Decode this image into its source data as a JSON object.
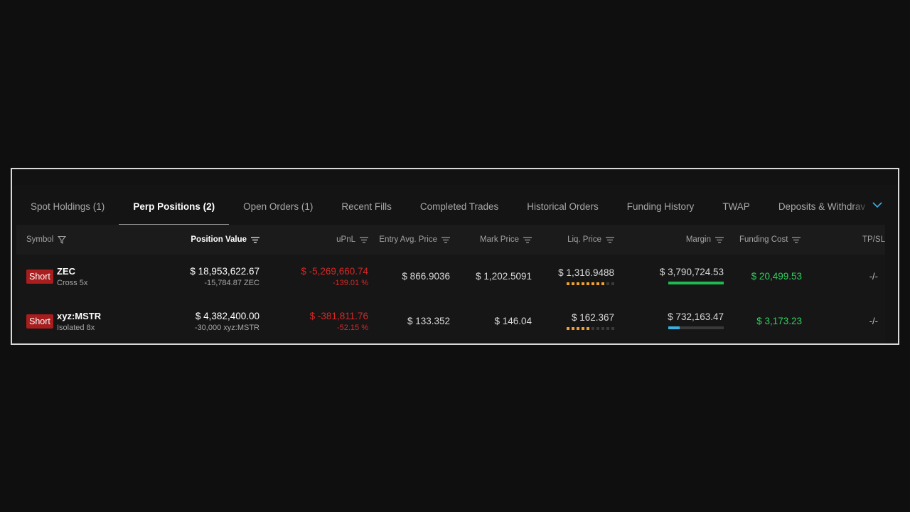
{
  "tabs": [
    {
      "label": "Spot Holdings (1)",
      "active": false
    },
    {
      "label": "Perp Positions (2)",
      "active": true
    },
    {
      "label": "Open Orders (1)",
      "active": false
    },
    {
      "label": "Recent Fills",
      "active": false
    },
    {
      "label": "Completed Trades",
      "active": false
    },
    {
      "label": "Historical Orders",
      "active": false
    },
    {
      "label": "Funding History",
      "active": false
    },
    {
      "label": "TWAP",
      "active": false
    },
    {
      "label": "Deposits & Withdrav",
      "active": false
    }
  ],
  "columns": {
    "symbol": "Symbol",
    "position_value": "Position Value",
    "upnl": "uPnL",
    "entry": "Entry Avg. Price",
    "mark": "Mark Price",
    "liq": "Liq. Price",
    "margin": "Margin",
    "funding": "Funding Cost",
    "tpsl": "TP/SL"
  },
  "rows": [
    {
      "side": "Short",
      "symbol": "ZEC",
      "mode": "Cross 5x",
      "position_value": "$ 18,953,622.67",
      "position_size": "-15,784.87 ZEC",
      "upnl": "$ -5,269,660.74",
      "upnl_pct": "-139.01 %",
      "entry": "$ 866.9036",
      "mark": "$ 1,202.5091",
      "liq": "$ 1,316.9488",
      "liq_risk_level": 8,
      "margin": "$ 3,790,724.53",
      "margin_bar_fraction": 1.0,
      "margin_bar_color": "#1fb954",
      "funding": "$ 20,499.53",
      "tpsl": "-/-"
    },
    {
      "side": "Short",
      "symbol": "xyz:MSTR",
      "mode": "Isolated 8x",
      "position_value": "$ 4,382,400.00",
      "position_size": "-30,000 xyz:MSTR",
      "upnl": "$ -381,811.76",
      "upnl_pct": "-52.15 %",
      "entry": "$ 133.352",
      "mark": "$ 146.04",
      "liq": "$ 162.367",
      "liq_risk_level": 5,
      "margin": "$ 732,163.47",
      "margin_bar_fraction": 0.2,
      "margin_bar_color": "#3ab0e0",
      "funding": "$ 3,173.23",
      "tpsl": "-/-"
    }
  ],
  "colors": {
    "negative": "#d62828",
    "positive": "#2fd05e",
    "short_badge": "#a81d1d",
    "liq_dot_on": "#f0a030",
    "accent_chevron": "#3ab0e0"
  }
}
